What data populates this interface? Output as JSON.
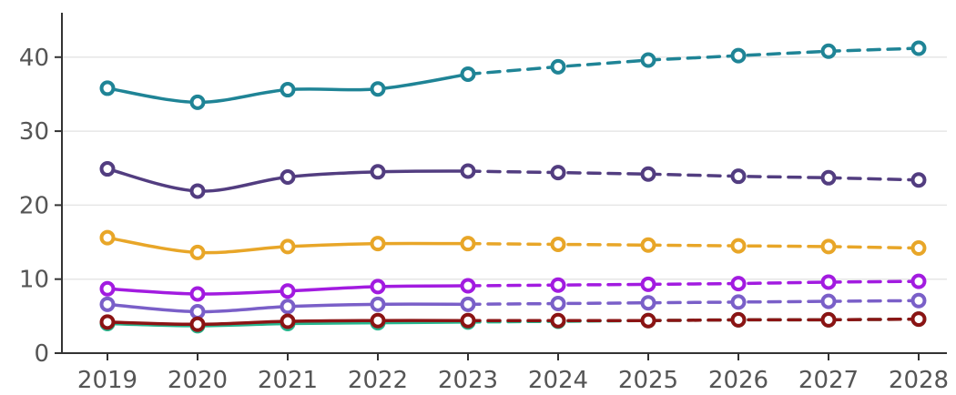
{
  "chart_data": {
    "type": "line",
    "title": "",
    "xlabel": "",
    "ylabel": "",
    "x": [
      "2019",
      "2020",
      "2021",
      "2022",
      "2023",
      "2024",
      "2025",
      "2026",
      "2027",
      "2028"
    ],
    "ylim": [
      0,
      46
    ],
    "yticks": [
      0,
      10,
      20,
      30,
      40
    ],
    "grid": true,
    "legend": "none",
    "projection_start": "2023",
    "line_style": {
      "actual": "solid",
      "projection": "dashed"
    },
    "series": [
      {
        "color": "#1f8496",
        "values": [
          35.8,
          33.9,
          35.6,
          35.7,
          37.7,
          38.7,
          39.6,
          40.2,
          40.8,
          41.2
        ]
      },
      {
        "color": "#523d80",
        "values": [
          24.9,
          21.9,
          23.8,
          24.5,
          24.6,
          24.4,
          24.2,
          23.9,
          23.7,
          23.4
        ]
      },
      {
        "color": "#e8a628",
        "values": [
          15.6,
          13.6,
          14.4,
          14.8,
          14.8,
          14.7,
          14.6,
          14.5,
          14.4,
          14.2
        ]
      },
      {
        "color": "#a21be0",
        "values": [
          8.7,
          8.0,
          8.4,
          9.0,
          9.1,
          9.2,
          9.3,
          9.4,
          9.6,
          9.7
        ]
      },
      {
        "color": "#7a5fc8",
        "values": [
          6.6,
          5.6,
          6.3,
          6.6,
          6.6,
          6.7,
          6.8,
          6.9,
          7.0,
          7.1
        ]
      },
      {
        "color": "#26b58d",
        "values": [
          4.0,
          3.7,
          4.0,
          4.1,
          4.2,
          4.3,
          4.4,
          4.5,
          4.5,
          4.6
        ]
      },
      {
        "color": "#8b1414",
        "values": [
          4.2,
          3.9,
          4.3,
          4.4,
          4.4,
          4.4,
          4.4,
          4.5,
          4.5,
          4.6
        ]
      }
    ]
  }
}
